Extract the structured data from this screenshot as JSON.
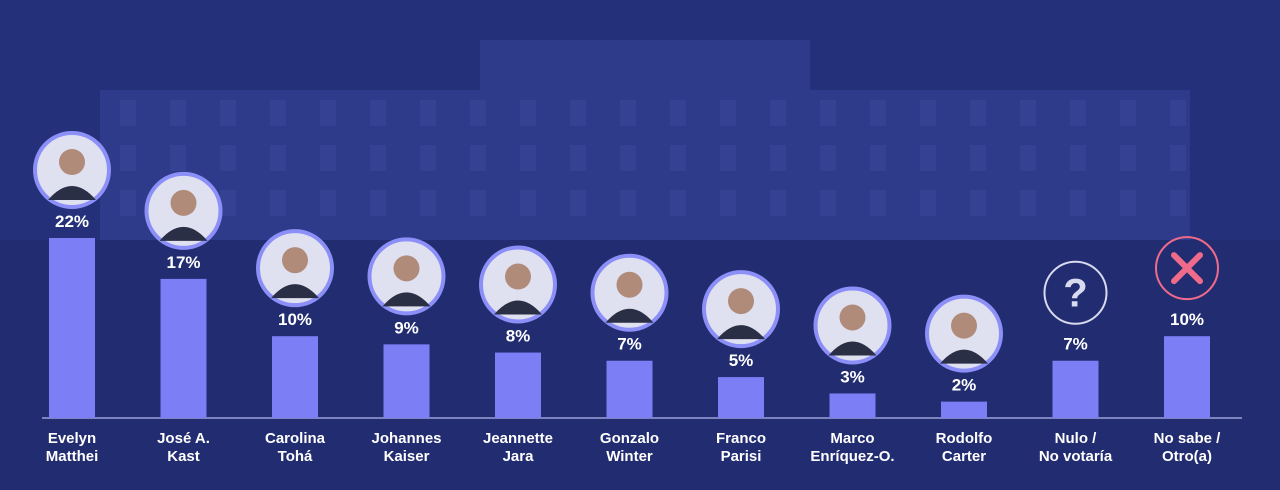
{
  "chart_data": {
    "type": "bar",
    "title": "",
    "xlabel": "",
    "ylabel": "",
    "ylim": [
      0,
      25
    ],
    "grid": false,
    "categories": [
      [
        "Evelyn",
        "Matthei"
      ],
      [
        "José A.",
        "Kast"
      ],
      [
        "Carolina",
        "Tohá"
      ],
      [
        "Johannes",
        "Kaiser"
      ],
      [
        "Jeannette",
        "Jara"
      ],
      [
        "Gonzalo",
        "Winter"
      ],
      [
        "Franco",
        "Parisi"
      ],
      [
        "Marco",
        "Enríquez-O."
      ],
      [
        "Rodolfo",
        "Carter"
      ],
      [
        "Nulo /",
        "No votaría"
      ],
      [
        "No sabe /",
        "Otro(a)"
      ]
    ],
    "values": [
      22,
      17,
      10,
      9,
      8,
      7,
      5,
      3,
      2,
      7,
      10
    ],
    "value_labels": [
      "22%",
      "17%",
      "10%",
      "9%",
      "8%",
      "7%",
      "5%",
      "3%",
      "2%",
      "7%",
      "10%"
    ],
    "icons": [
      "avatar-icon",
      "avatar-icon",
      "avatar-icon",
      "avatar-icon",
      "avatar-icon",
      "avatar-icon",
      "avatar-icon",
      "avatar-icon",
      "avatar-icon",
      "question-mark-icon",
      "cross-icon"
    ],
    "colors": {
      "background": "#25307a",
      "bar": "#7b7ef5",
      "avatar_border": "#8b8ff7",
      "axis": "#9aa0d8",
      "cross": "#f06b8a",
      "question": "#ffffff"
    }
  }
}
